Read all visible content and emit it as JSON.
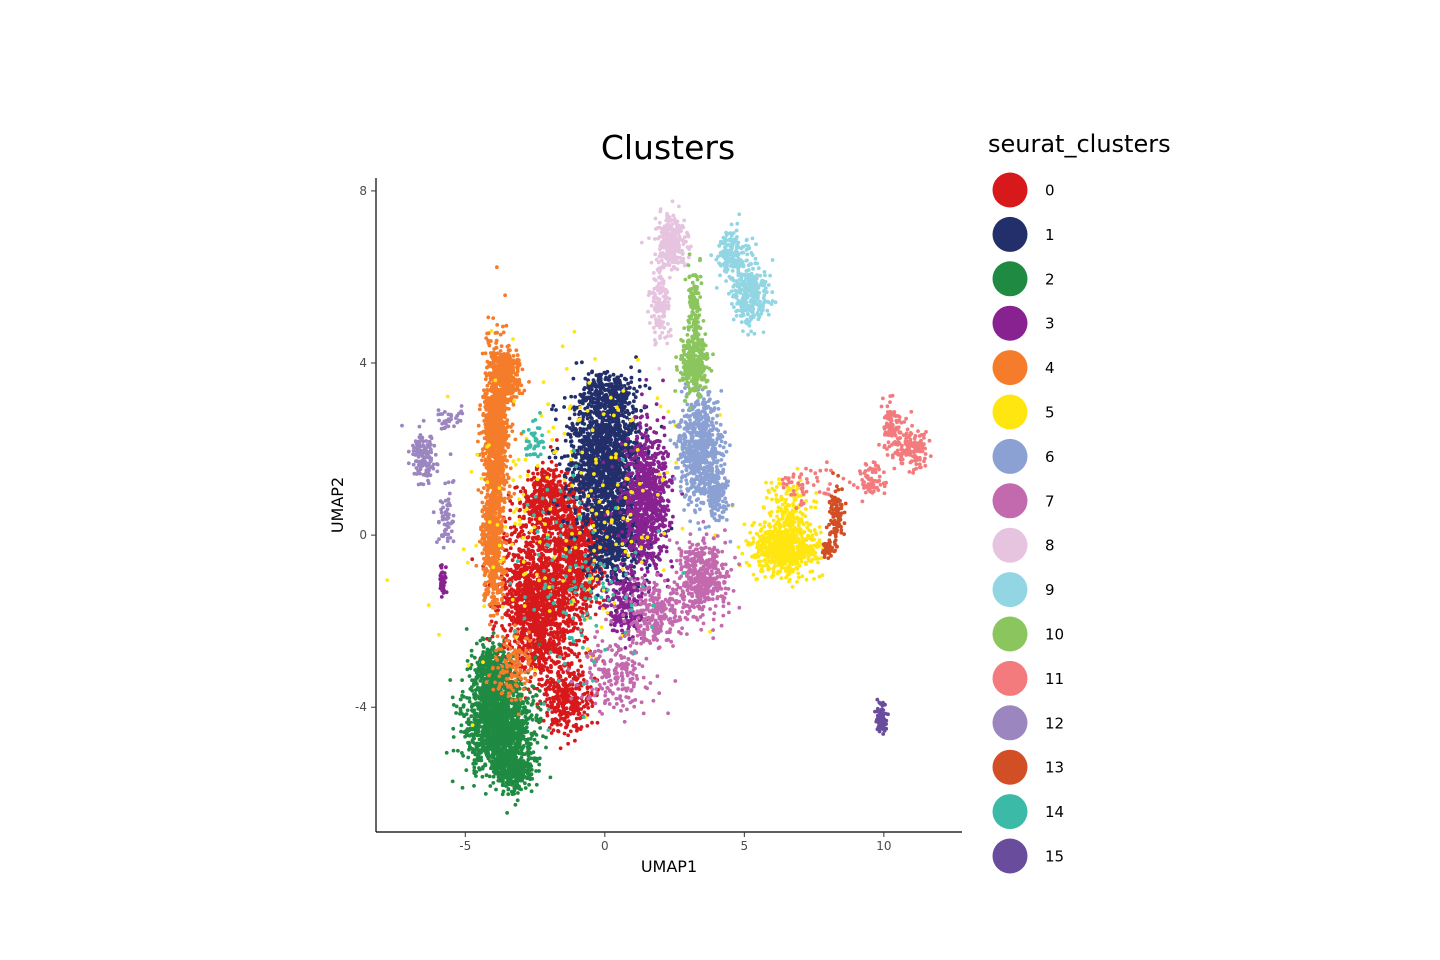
{
  "chart_data": {
    "type": "scatter",
    "title": "Clusters",
    "xlabel": "UMAP1",
    "ylabel": "UMAP2",
    "xlim": [
      -8.2,
      12.8
    ],
    "ylim": [
      -6.9,
      8.3
    ],
    "xticks": [
      -5,
      0,
      5,
      10
    ],
    "yticks": [
      -4,
      0,
      4,
      8
    ],
    "grid": false,
    "legend_title": "seurat_clusters",
    "legend_position": "right",
    "series": [
      {
        "name": "0",
        "color": "#D7191C",
        "points": [
          {
            "x": -2.4,
            "y": -1.6,
            "sx": 1.0,
            "sy": 1.3,
            "n": 1500
          },
          {
            "x": -1.0,
            "y": -0.4,
            "sx": 0.8,
            "sy": 1.0,
            "n": 700
          },
          {
            "x": -2.0,
            "y": 0.8,
            "sx": 0.6,
            "sy": 0.5,
            "n": 350
          },
          {
            "x": -1.3,
            "y": -3.8,
            "sx": 0.6,
            "sy": 0.5,
            "n": 300
          }
        ]
      },
      {
        "name": "1",
        "color": "#232F6B",
        "points": [
          {
            "x": 0.0,
            "y": 1.8,
            "sx": 0.9,
            "sy": 1.0,
            "n": 1300
          },
          {
            "x": 0.4,
            "y": 0.0,
            "sx": 0.7,
            "sy": 0.8,
            "n": 600
          },
          {
            "x": 0.2,
            "y": 3.3,
            "sx": 0.6,
            "sy": 0.35,
            "n": 250
          }
        ]
      },
      {
        "name": "2",
        "color": "#1F8A42",
        "points": [
          {
            "x": -3.8,
            "y": -4.4,
            "sx": 0.75,
            "sy": 0.75,
            "n": 1500
          },
          {
            "x": -4.0,
            "y": -3.2,
            "sx": 0.45,
            "sy": 0.5,
            "n": 350
          },
          {
            "x": -3.3,
            "y": -5.4,
            "sx": 0.5,
            "sy": 0.35,
            "n": 300
          }
        ]
      },
      {
        "name": "3",
        "color": "#882291",
        "points": [
          {
            "x": 1.5,
            "y": 0.8,
            "sx": 0.55,
            "sy": 1.1,
            "n": 800
          },
          {
            "x": 0.7,
            "y": -1.6,
            "sx": 0.45,
            "sy": 0.5,
            "n": 200
          },
          {
            "x": -5.8,
            "y": -1.1,
            "sx": 0.08,
            "sy": 0.2,
            "n": 45
          }
        ]
      },
      {
        "name": "4",
        "color": "#F47C2A",
        "points": [
          {
            "x": -3.9,
            "y": 2.4,
            "sx": 0.3,
            "sy": 1.3,
            "n": 1000
          },
          {
            "x": -4.0,
            "y": -0.2,
            "sx": 0.25,
            "sy": 1.0,
            "n": 500
          },
          {
            "x": -3.5,
            "y": 3.7,
            "sx": 0.3,
            "sy": 0.4,
            "n": 250
          },
          {
            "x": -3.3,
            "y": -3.0,
            "sx": 0.5,
            "sy": 0.6,
            "n": 120
          }
        ]
      },
      {
        "name": "5",
        "color": "#FFE611",
        "points": [
          {
            "x": 6.5,
            "y": -0.3,
            "sx": 0.75,
            "sy": 0.4,
            "n": 650
          },
          {
            "x": 6.5,
            "y": 0.6,
            "sx": 0.5,
            "sy": 0.4,
            "n": 150
          },
          {
            "x": -1.0,
            "y": 0.5,
            "sx": 3.0,
            "sy": 2.5,
            "n": 200
          }
        ]
      },
      {
        "name": "6",
        "color": "#8BA1D3",
        "points": [
          {
            "x": 3.4,
            "y": 2.0,
            "sx": 0.5,
            "sy": 0.8,
            "n": 650
          },
          {
            "x": 4.0,
            "y": 1.0,
            "sx": 0.25,
            "sy": 0.4,
            "n": 150
          }
        ]
      },
      {
        "name": "7",
        "color": "#C36AAE",
        "points": [
          {
            "x": 3.5,
            "y": -1.0,
            "sx": 0.6,
            "sy": 0.6,
            "n": 450
          },
          {
            "x": 1.8,
            "y": -1.8,
            "sx": 0.7,
            "sy": 0.5,
            "n": 250
          },
          {
            "x": 0.5,
            "y": -3.2,
            "sx": 0.9,
            "sy": 0.6,
            "n": 200
          }
        ]
      },
      {
        "name": "8",
        "color": "#E6C4DF",
        "points": [
          {
            "x": 2.4,
            "y": 6.8,
            "sx": 0.35,
            "sy": 0.45,
            "n": 300
          },
          {
            "x": 2.0,
            "y": 5.4,
            "sx": 0.25,
            "sy": 0.6,
            "n": 150
          }
        ]
      },
      {
        "name": "9",
        "color": "#92D5E3",
        "points": [
          {
            "x": 5.2,
            "y": 5.6,
            "sx": 0.45,
            "sy": 0.5,
            "n": 280
          },
          {
            "x": 4.6,
            "y": 6.5,
            "sx": 0.35,
            "sy": 0.4,
            "n": 180
          }
        ]
      },
      {
        "name": "10",
        "color": "#8BC55E",
        "points": [
          {
            "x": 3.2,
            "y": 4.0,
            "sx": 0.35,
            "sy": 0.4,
            "n": 300
          },
          {
            "x": 3.2,
            "y": 5.3,
            "sx": 0.15,
            "sy": 0.6,
            "n": 120
          }
        ]
      },
      {
        "name": "11",
        "color": "#F37B7D",
        "points": [
          {
            "x": 11.0,
            "y": 2.0,
            "sx": 0.5,
            "sy": 0.3,
            "n": 150
          },
          {
            "x": 10.3,
            "y": 2.6,
            "sx": 0.2,
            "sy": 0.3,
            "n": 90
          },
          {
            "x": 9.5,
            "y": 1.3,
            "sx": 0.4,
            "sy": 0.25,
            "n": 70
          },
          {
            "x": 7.2,
            "y": 1.2,
            "sx": 0.7,
            "sy": 0.3,
            "n": 50
          }
        ]
      },
      {
        "name": "12",
        "color": "#9C86C0",
        "points": [
          {
            "x": -6.5,
            "y": 1.8,
            "sx": 0.3,
            "sy": 0.4,
            "n": 130
          },
          {
            "x": -5.7,
            "y": 0.4,
            "sx": 0.2,
            "sy": 0.6,
            "n": 60
          },
          {
            "x": -5.6,
            "y": 2.8,
            "sx": 0.4,
            "sy": 0.25,
            "n": 30
          }
        ]
      },
      {
        "name": "13",
        "color": "#D24E25",
        "points": [
          {
            "x": 8.3,
            "y": 0.5,
            "sx": 0.18,
            "sy": 0.45,
            "n": 100
          },
          {
            "x": 8.0,
            "y": -0.3,
            "sx": 0.12,
            "sy": 0.15,
            "n": 40
          }
        ]
      },
      {
        "name": "14",
        "color": "#3BBBA7",
        "points": [
          {
            "x": -2.5,
            "y": 2.2,
            "sx": 0.2,
            "sy": 0.3,
            "n": 40
          },
          {
            "x": -1.0,
            "y": -1.0,
            "sx": 1.5,
            "sy": 1.8,
            "n": 120
          }
        ]
      },
      {
        "name": "15",
        "color": "#6A4C9C",
        "points": [
          {
            "x": 9.9,
            "y": -4.3,
            "sx": 0.12,
            "sy": 0.25,
            "n": 90
          }
        ]
      }
    ]
  }
}
